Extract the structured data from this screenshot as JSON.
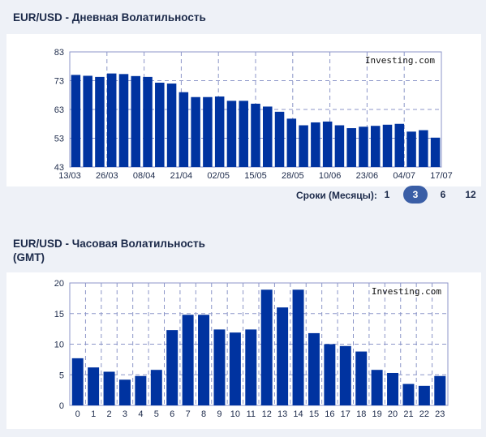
{
  "titles": {
    "daily": "EUR/USD - Дневная Волатильность",
    "hourly_line1": "EUR/USD - Часовая Волатильность",
    "hourly_line2": "(GMT)"
  },
  "terms": {
    "label": "Сроки (Месяцы):",
    "options": [
      "1",
      "3",
      "6",
      "12"
    ],
    "selected": "3"
  },
  "colors": {
    "bar": "#0033a0",
    "grid": "#8c96c8",
    "accent": "#3a5ea6"
  },
  "chart_data": [
    {
      "type": "bar",
      "watermark": "Investing.com",
      "ylim": [
        43,
        83
      ],
      "yticks": [
        43,
        53,
        63,
        73,
        83
      ],
      "xtick_labels": [
        "13/03",
        "26/03",
        "08/04",
        "21/04",
        "02/05",
        "15/05",
        "28/05",
        "10/06",
        "23/06",
        "04/07",
        "17/07"
      ],
      "values": [
        75,
        74.7,
        74.3,
        75.5,
        75.3,
        74.6,
        74.3,
        72.3,
        72,
        69,
        67.3,
        67.3,
        67.5,
        66,
        66,
        65,
        64,
        62.2,
        59.8,
        57.5,
        58.5,
        58.8,
        57.5,
        56.5,
        57,
        57.3,
        57.7,
        58,
        55.3,
        55.8,
        53.2
      ],
      "xlabel": "",
      "ylabel": ""
    },
    {
      "type": "bar",
      "watermark": "Investing.com",
      "ylim": [
        0,
        20
      ],
      "yticks": [
        0,
        5,
        10,
        15,
        20
      ],
      "categories": [
        "0",
        "1",
        "2",
        "3",
        "4",
        "5",
        "6",
        "7",
        "8",
        "9",
        "10",
        "11",
        "12",
        "13",
        "14",
        "15",
        "16",
        "17",
        "18",
        "19",
        "20",
        "21",
        "22",
        "23"
      ],
      "values": [
        7.7,
        6.2,
        5.5,
        4.2,
        4.8,
        5.8,
        12.3,
        14.8,
        14.8,
        12.4,
        11.9,
        12.4,
        18.9,
        16,
        18.9,
        11.8,
        10,
        9.7,
        8.8,
        5.8,
        5.3,
        3.5,
        3.2,
        4.8
      ],
      "xlabel": "",
      "ylabel": ""
    }
  ]
}
